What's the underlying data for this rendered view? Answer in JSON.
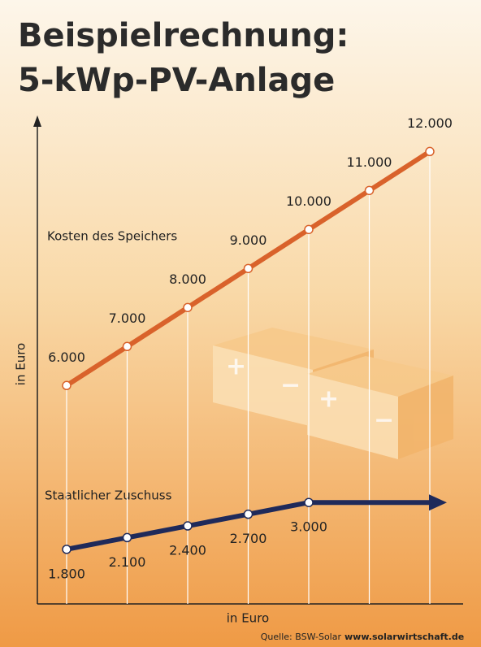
{
  "chart_data": {
    "type": "line",
    "title_lines": [
      "Beispielrechnung:",
      "5-kWp-PV-Anlage"
    ],
    "y_axis_label": "in Euro",
    "x_axis_label": "in Euro",
    "source_label": "Quelle: BSW-Solar",
    "source_url": "www.solarwirtschaft.de",
    "categories": [
      null,
      null,
      null,
      null,
      null,
      null,
      null
    ],
    "ylim": [
      400,
      12800
    ],
    "series": [
      {
        "name": "Kosten des Speichers",
        "color": "#d9622b",
        "values": [
          6000,
          7000,
          8000,
          9000,
          10000,
          11000,
          12000
        ],
        "value_labels": [
          "6.000",
          "7.000",
          "8.000",
          "9.000",
          "10.000",
          "11.000",
          "12.000"
        ]
      },
      {
        "name": "Staatlicher Zuschuss",
        "color": "#1f2a5a",
        "values": [
          1800,
          2100,
          2400,
          2700,
          3000,
          null,
          null
        ],
        "value_labels": [
          "1.800",
          "2.100",
          "2.400",
          "2.700",
          "3.000",
          null,
          null
        ]
      }
    ]
  }
}
